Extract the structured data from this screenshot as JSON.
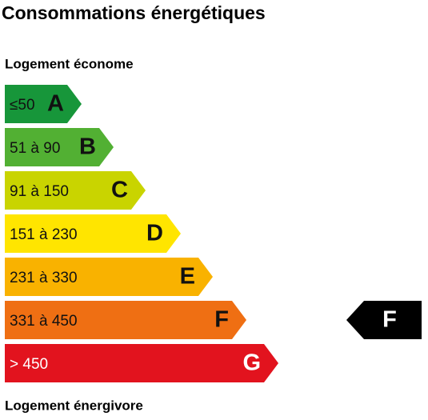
{
  "title": "Consommations énergétiques",
  "top_label": "Logement économe",
  "bottom_label": "Logement énergivore",
  "classes": [
    {
      "range": "≤50",
      "letter": "A",
      "color": "#17963a",
      "text_color": "#111111"
    },
    {
      "range": "51 à 90",
      "letter": "B",
      "color": "#52b033",
      "text_color": "#111111"
    },
    {
      "range": "91 à 150",
      "letter": "C",
      "color": "#c9d400",
      "text_color": "#111111"
    },
    {
      "range": "151 à 230",
      "letter": "D",
      "color": "#ffe500",
      "text_color": "#111111"
    },
    {
      "range": "231 à 330",
      "letter": "E",
      "color": "#f9b200",
      "text_color": "#111111"
    },
    {
      "range": "331 à 450",
      "letter": "F",
      "color": "#ef6f13",
      "text_color": "#111111"
    },
    {
      "range": "> 450",
      "letter": "G",
      "color": "#e2131e",
      "text_color": "#ffffff"
    }
  ],
  "indicator": {
    "letter": "F",
    "color": "#000000",
    "text_color": "#ffffff"
  }
}
